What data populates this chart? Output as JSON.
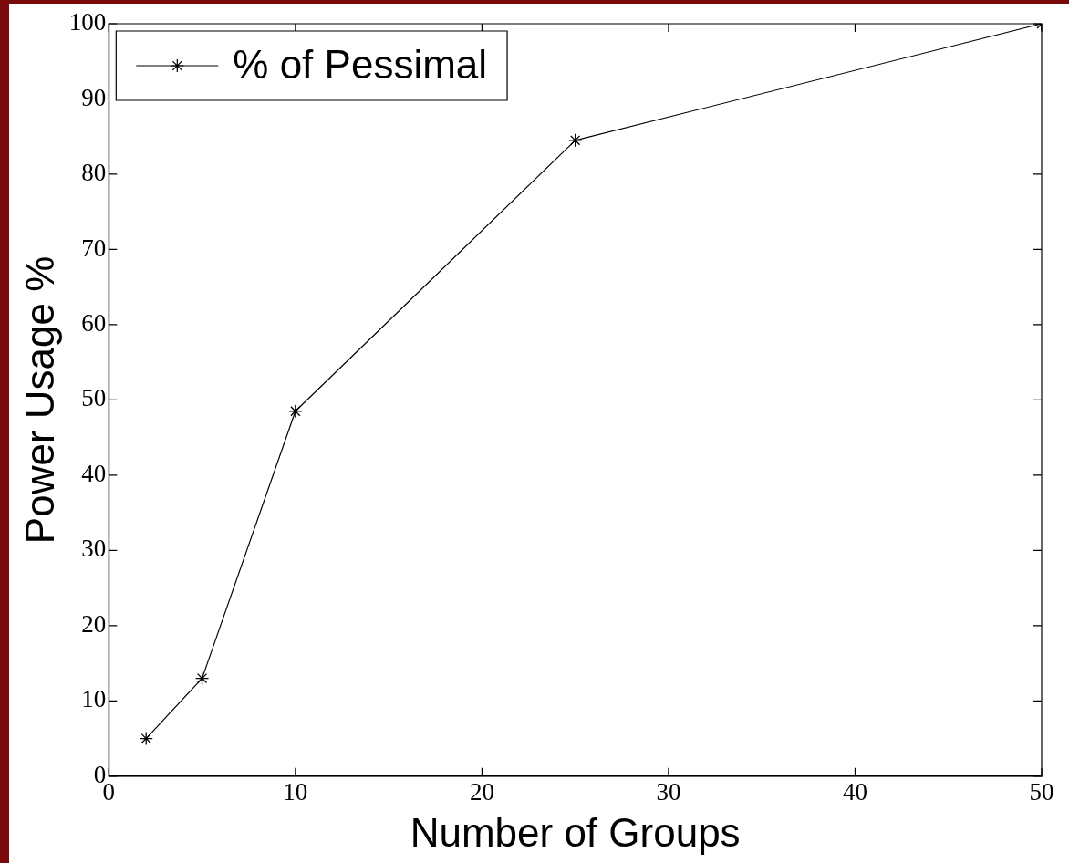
{
  "chart_data": {
    "type": "line",
    "xlabel": "Number of Groups",
    "ylabel": "Power Usage %",
    "x": [
      2,
      5,
      10,
      25,
      50
    ],
    "series": [
      {
        "name": "% of Pessimal",
        "color": "#000000",
        "values": [
          5,
          13,
          48.5,
          84.5,
          100
        ]
      }
    ],
    "xlim": [
      0,
      50
    ],
    "xticks": [
      0,
      10,
      20,
      30,
      40,
      50
    ],
    "ylim": [
      0,
      100
    ],
    "yticks": [
      0,
      10,
      20,
      30,
      40,
      50,
      60,
      70,
      80,
      90,
      100
    ],
    "grid": false,
    "legend": "top left",
    "marker": "cross",
    "line_style": "solid"
  }
}
